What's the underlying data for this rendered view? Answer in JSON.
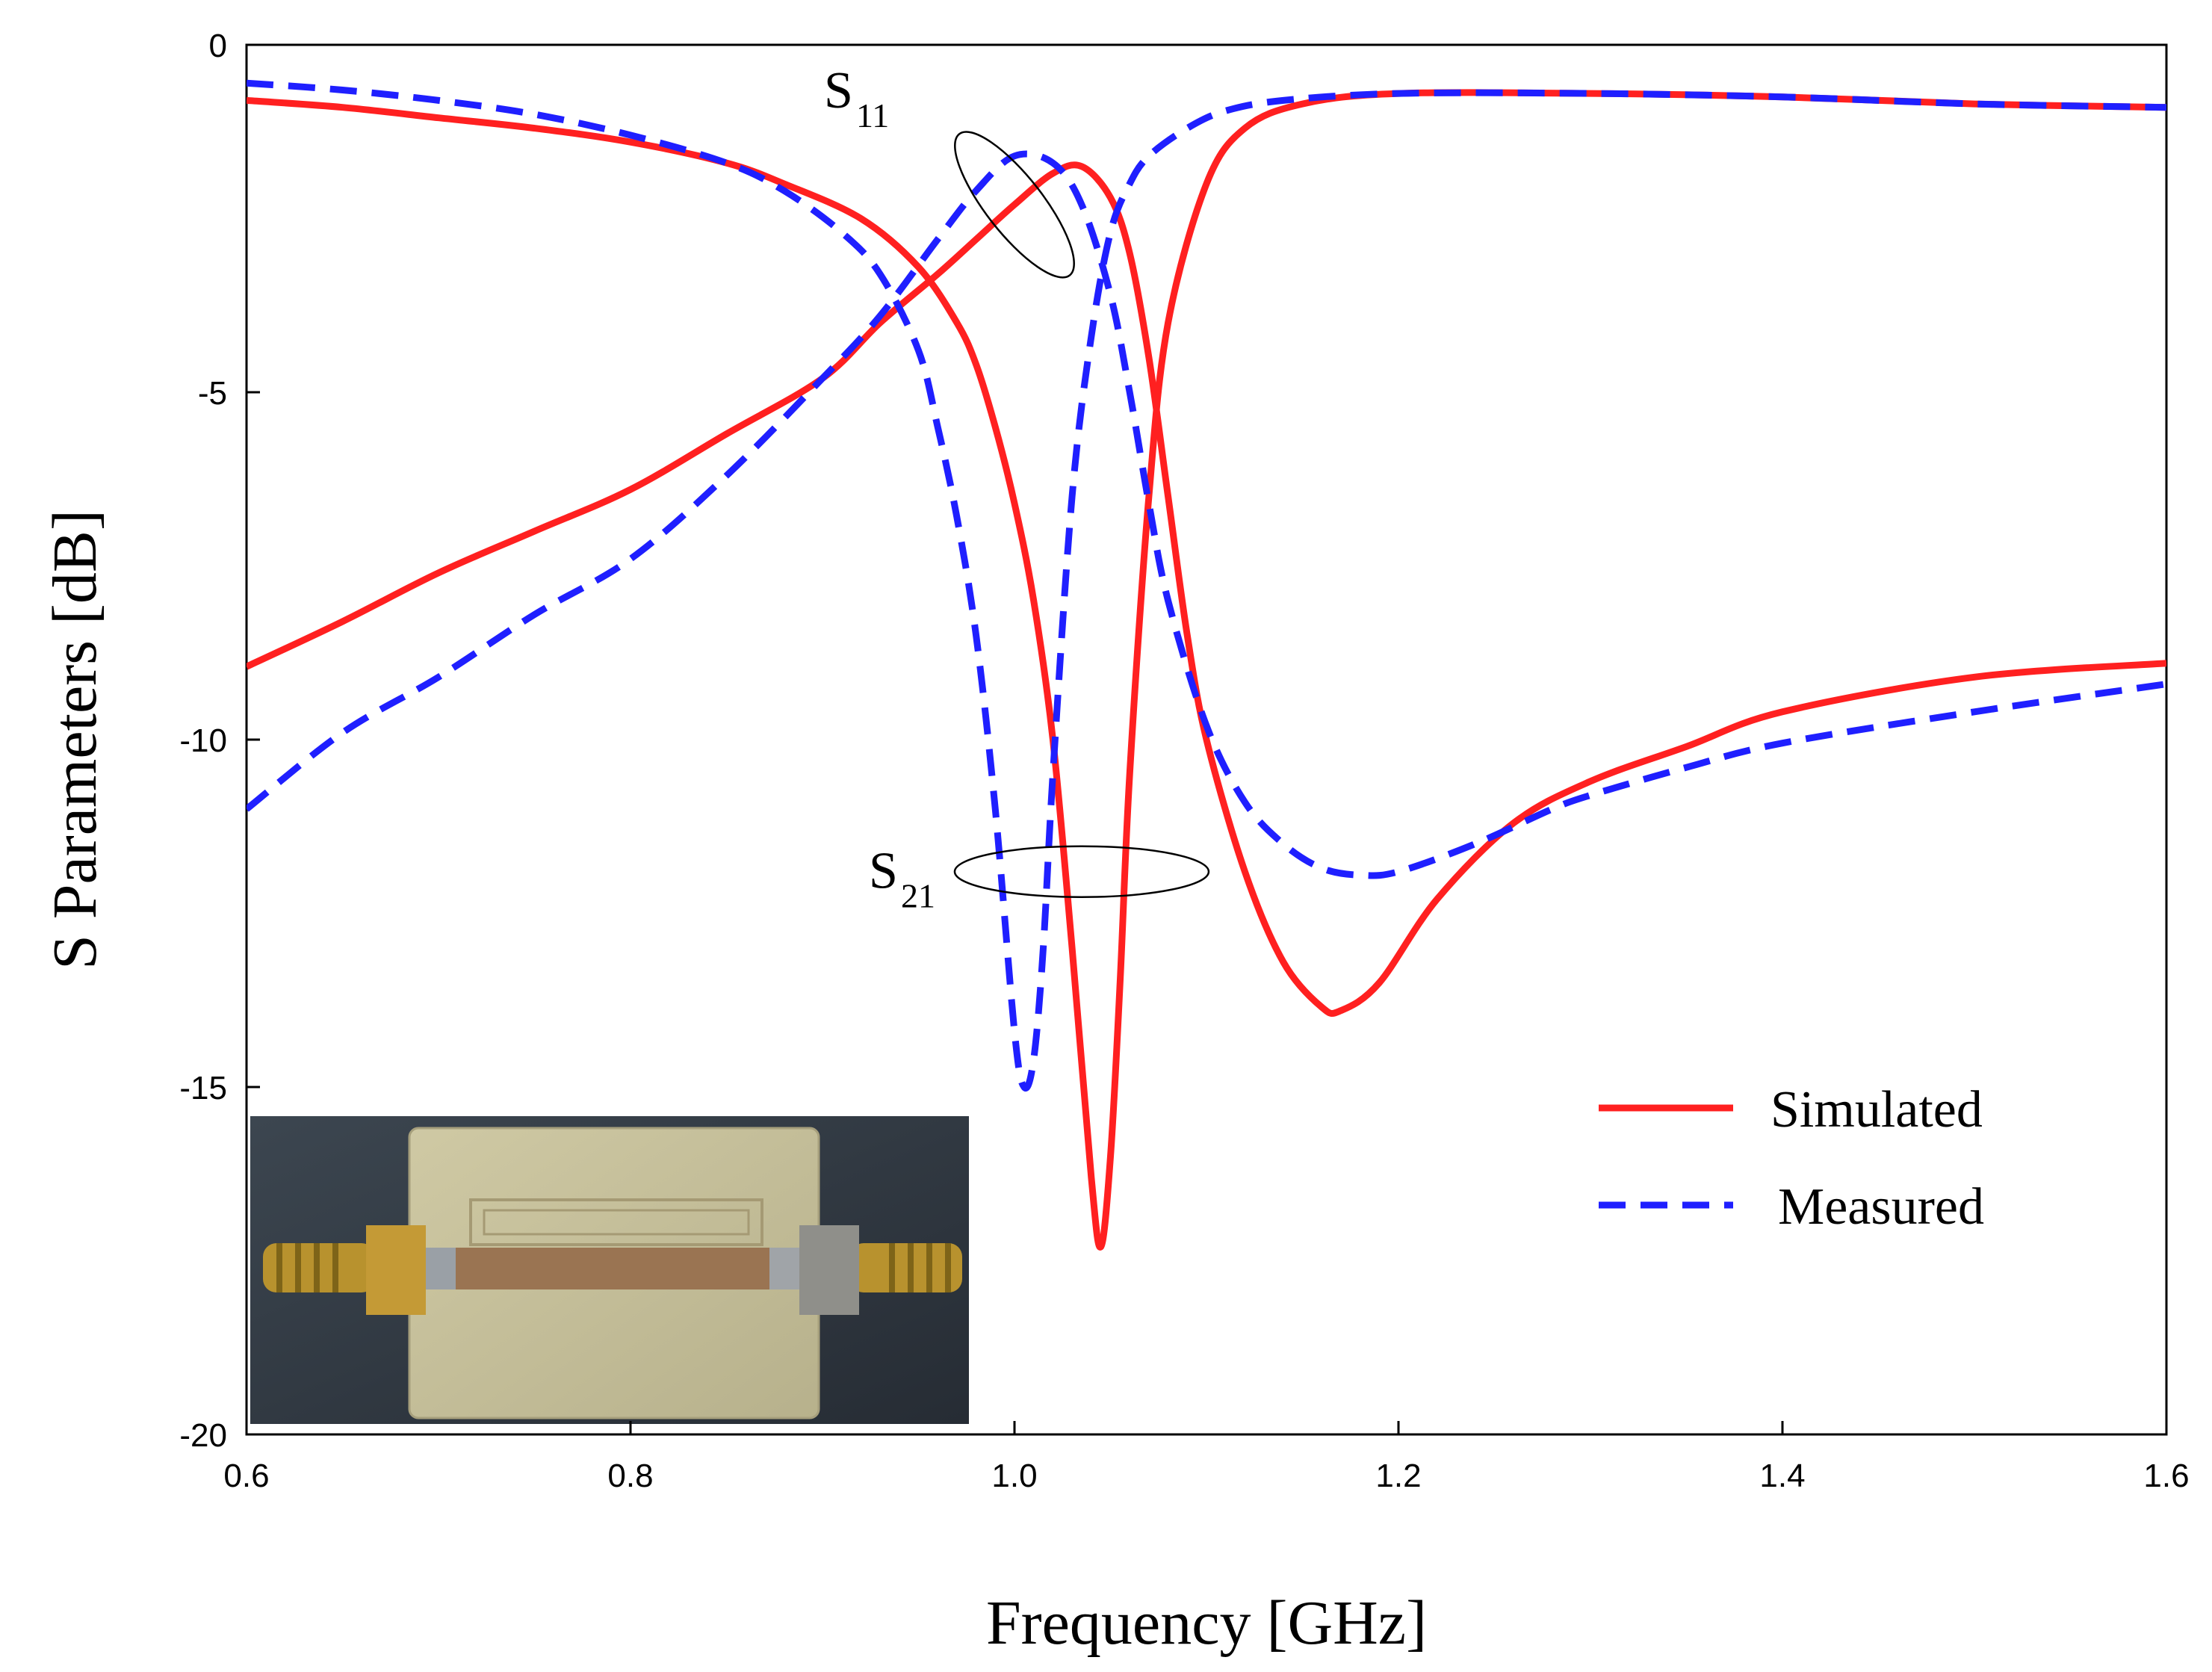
{
  "chart_data": {
    "type": "line",
    "title": "",
    "xlabel": "Frequency [GHz]",
    "ylabel": "S Parameters [dB]",
    "xlim": [
      0.6,
      1.6
    ],
    "ylim": [
      -20,
      0
    ],
    "xticks": [
      0.6,
      0.8,
      1.0,
      1.2,
      1.4,
      1.6
    ],
    "xtick_labels": [
      "0.6",
      "0.8",
      "1.0",
      "1.2",
      "1.4",
      "1.6"
    ],
    "yticks": [
      0,
      -5,
      -10,
      -15,
      -20
    ],
    "ytick_labels": [
      "0",
      "-5",
      "-10",
      "-15",
      "-20"
    ],
    "grid": false,
    "legend_position": "bottom-right",
    "legend": [
      {
        "label": "Simulated",
        "color": "#ff2020",
        "style": "solid"
      },
      {
        "label": "Measured",
        "color": "#1f1fff",
        "style": "dashed"
      }
    ],
    "annotations": [
      {
        "main": "S",
        "sub": "11",
        "target_series": "S11",
        "x": 1.0,
        "y": -2.3
      },
      {
        "main": "S",
        "sub": "21",
        "target_series": "S21",
        "x": 1.035,
        "y": -11.9
      }
    ],
    "inset_description": "photo of fabricated filter",
    "series": [
      {
        "name": "S21 Simulated",
        "color": "#ff2020",
        "style": "solid",
        "x": [
          0.6,
          0.65,
          0.7,
          0.75,
          0.8,
          0.85,
          0.88,
          0.92,
          0.95,
          0.97,
          0.98,
          0.99,
          1.0,
          1.01,
          1.02,
          1.03,
          1.04,
          1.045,
          1.05,
          1.055,
          1.06,
          1.07,
          1.08,
          1.1,
          1.12,
          1.15,
          1.2,
          1.3,
          1.4,
          1.5,
          1.6
        ],
        "y": [
          -0.8,
          -0.9,
          -1.05,
          -1.2,
          -1.4,
          -1.7,
          -2.0,
          -2.5,
          -3.2,
          -4.0,
          -4.6,
          -5.5,
          -6.6,
          -8.0,
          -10.0,
          -13.0,
          -16.3,
          -17.3,
          -16.0,
          -13.5,
          -10.5,
          -6.5,
          -4.0,
          -2.0,
          -1.2,
          -0.85,
          -0.7,
          -0.7,
          -0.75,
          -0.85,
          -0.9
        ]
      },
      {
        "name": "S11 Simulated",
        "color": "#ff2020",
        "style": "solid",
        "x": [
          0.6,
          0.65,
          0.7,
          0.75,
          0.8,
          0.85,
          0.9,
          0.93,
          0.96,
          0.98,
          1.0,
          1.02,
          1.035,
          1.05,
          1.06,
          1.07,
          1.08,
          1.09,
          1.1,
          1.12,
          1.14,
          1.16,
          1.17,
          1.19,
          1.22,
          1.26,
          1.3,
          1.35,
          1.4,
          1.5,
          1.6
        ],
        "y": [
          -8.95,
          -8.3,
          -7.6,
          -7.0,
          -6.4,
          -5.6,
          -4.8,
          -4.0,
          -3.3,
          -2.8,
          -2.3,
          -1.85,
          -1.75,
          -2.2,
          -3.0,
          -4.5,
          -6.5,
          -8.5,
          -10.0,
          -11.9,
          -13.2,
          -13.85,
          -13.9,
          -13.5,
          -12.3,
          -11.2,
          -10.6,
          -10.1,
          -9.6,
          -9.1,
          -8.9
        ]
      },
      {
        "name": "S21 Measured",
        "color": "#1f1fff",
        "style": "dashed",
        "x": [
          0.6,
          0.65,
          0.7,
          0.75,
          0.8,
          0.85,
          0.88,
          0.91,
          0.93,
          0.95,
          0.96,
          0.97,
          0.98,
          0.99,
          1.0,
          1.005,
          1.01,
          1.015,
          1.02,
          1.03,
          1.04,
          1.05,
          1.06,
          1.07,
          1.09,
          1.11,
          1.14,
          1.2,
          1.3,
          1.4,
          1.5,
          1.6
        ],
        "y": [
          -0.55,
          -0.65,
          -0.8,
          -1.0,
          -1.3,
          -1.7,
          -2.1,
          -2.7,
          -3.3,
          -4.4,
          -5.5,
          -6.8,
          -8.5,
          -11.0,
          -14.2,
          -15.0,
          -14.6,
          -13.0,
          -10.5,
          -6.5,
          -4.2,
          -2.7,
          -2.0,
          -1.6,
          -1.2,
          -0.95,
          -0.8,
          -0.7,
          -0.7,
          -0.75,
          -0.85,
          -0.9
        ]
      },
      {
        "name": "S11 Measured",
        "color": "#1f1fff",
        "style": "dashed",
        "x": [
          0.6,
          0.65,
          0.7,
          0.75,
          0.8,
          0.85,
          0.9,
          0.93,
          0.96,
          0.98,
          1.0,
          1.02,
          1.035,
          1.05,
          1.06,
          1.07,
          1.08,
          1.1,
          1.12,
          1.14,
          1.16,
          1.18,
          1.2,
          1.24,
          1.28,
          1.3,
          1.35,
          1.4,
          1.5,
          1.6
        ],
        "y": [
          -11.0,
          -9.9,
          -9.1,
          -8.2,
          -7.4,
          -6.2,
          -4.8,
          -3.9,
          -2.8,
          -2.1,
          -1.6,
          -1.7,
          -2.3,
          -3.6,
          -5.0,
          -6.6,
          -8.0,
          -9.8,
          -10.9,
          -11.5,
          -11.85,
          -11.95,
          -11.9,
          -11.5,
          -11.0,
          -10.8,
          -10.4,
          -10.05,
          -9.6,
          -9.2
        ]
      }
    ]
  }
}
